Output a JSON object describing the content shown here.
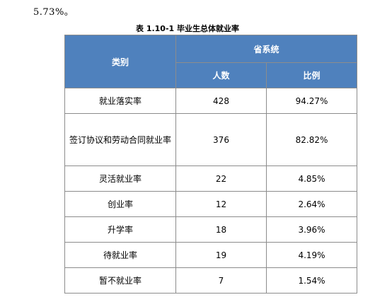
{
  "lead_text": "5.73%。",
  "caption": "表 1.10-1  毕业生总体就业率",
  "table": {
    "category_header": "类别",
    "group_header": "省系统",
    "sub_headers": [
      "人数",
      "比例"
    ],
    "rows": [
      {
        "category": "就业落实率",
        "count": "428",
        "ratio": "94.27%"
      },
      {
        "category": "签订协议和劳动合同就业率",
        "count": "376",
        "ratio": "82.82%"
      },
      {
        "category": "灵活就业率",
        "count": "22",
        "ratio": "4.85%"
      },
      {
        "category": "创业率",
        "count": "12",
        "ratio": "2.64%"
      },
      {
        "category": "升学率",
        "count": "18",
        "ratio": "3.96%"
      },
      {
        "category": "待就业率",
        "count": "19",
        "ratio": "4.19%"
      },
      {
        "category": "暂不就业率",
        "count": "7",
        "ratio": "1.54%"
      }
    ]
  }
}
